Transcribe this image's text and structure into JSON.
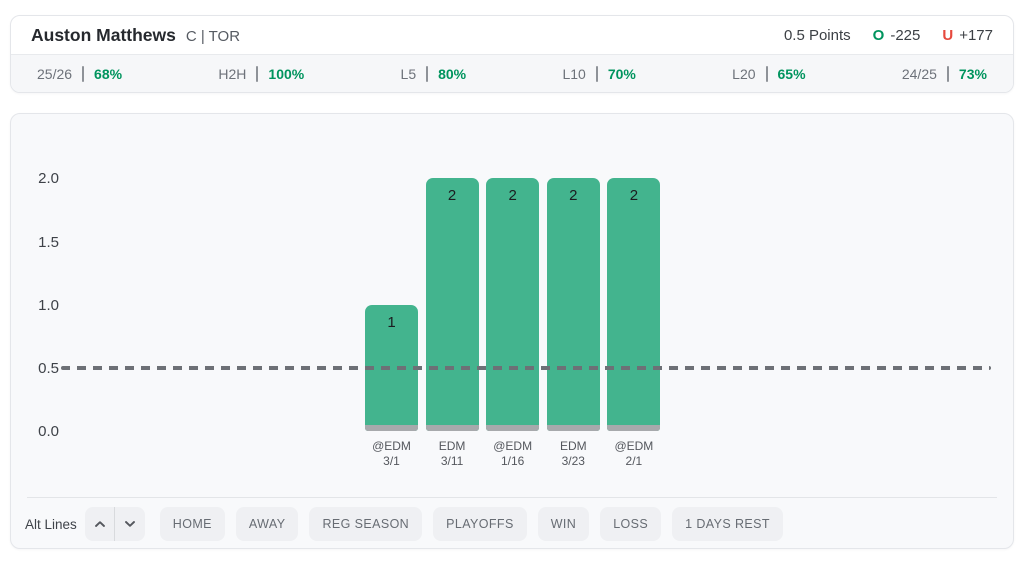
{
  "header": {
    "player_name": "Auston Matthews",
    "position_team": "C | TOR",
    "line_label": "0.5 Points",
    "over": {
      "symbol": "O",
      "odds": "-225"
    },
    "under": {
      "symbol": "U",
      "odds": "+177"
    }
  },
  "stats": [
    {
      "label": "25/26",
      "value": "68%"
    },
    {
      "label": "H2H",
      "value": "100%"
    },
    {
      "label": "L5",
      "value": "80%"
    },
    {
      "label": "L10",
      "value": "70%"
    },
    {
      "label": "L20",
      "value": "65%"
    },
    {
      "label": "24/25",
      "value": "73%"
    }
  ],
  "chart_data": {
    "type": "bar",
    "title": "",
    "xlabel": "",
    "ylabel": "",
    "categories": [
      {
        "opponent": "@EDM",
        "date": "3/1"
      },
      {
        "opponent": "EDM",
        "date": "3/11"
      },
      {
        "opponent": "@EDM",
        "date": "1/16"
      },
      {
        "opponent": "EDM",
        "date": "3/23"
      },
      {
        "opponent": "@EDM",
        "date": "2/1"
      }
    ],
    "values": [
      1,
      2,
      2,
      2,
      2
    ],
    "prop_line": 0.5,
    "yticks": [
      2,
      1.5,
      1,
      0.5,
      0
    ],
    "ylim": [
      0,
      2.4
    ],
    "grid": false,
    "legend": false
  },
  "filters": {
    "alt_lines_label": "Alt Lines",
    "buttons": [
      "HOME",
      "AWAY",
      "REG SEASON",
      "PLAYOFFS",
      "WIN",
      "LOSS",
      "1 DAYS REST"
    ]
  },
  "colors": {
    "accent_green": "#00945e",
    "accent_red": "#e6493e",
    "bar_green": "#43b48e",
    "bar_base_gray": "#a7a9ac",
    "prop_line_gray": "#6d7076",
    "card_bg": "#f8f9fb",
    "button_bg": "#eff0f3"
  }
}
